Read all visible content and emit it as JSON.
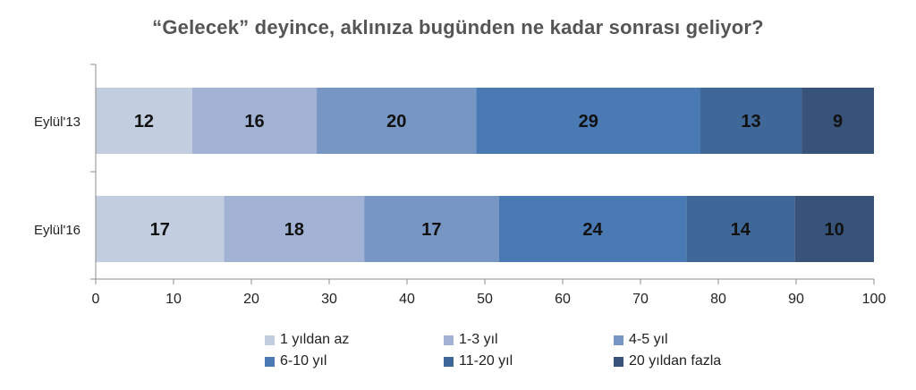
{
  "chart_data": {
    "type": "bar",
    "orientation": "horizontal",
    "stacked": true,
    "title": "“Gelecek” deyince, aklınıza bugünden ne kadar sonrası geliyor?",
    "categories": [
      "Eylül'13",
      "Eylül'16"
    ],
    "series": [
      {
        "name": "1 yıldan az",
        "values": [
          12,
          17
        ],
        "color": "#c3cde0"
      },
      {
        "name": "1-3 yıl",
        "values": [
          16,
          18
        ],
        "color": "#a1b2d4"
      },
      {
        "name": "4-5 yıl",
        "values": [
          20,
          17
        ],
        "color": "#7796c4"
      },
      {
        "name": "6-10 yıl",
        "values": [
          29,
          24
        ],
        "color": "#4a7ab3"
      },
      {
        "name": "11-20 yıl",
        "values": [
          13,
          14
        ],
        "color": "#3f6899"
      },
      {
        "name": "20 yıldan fazla",
        "values": [
          9,
          10
        ],
        "color": "#385379"
      }
    ],
    "cumulative_ends": [
      [
        12.4,
        28.4,
        48.9,
        77.7,
        90.7,
        100
      ],
      [
        16.5,
        34.5,
        51.8,
        75.9,
        89.8,
        100
      ]
    ],
    "xlim": [
      0,
      100
    ],
    "xticks": [
      0,
      10,
      20,
      30,
      40,
      50,
      60,
      70,
      80,
      90,
      100
    ],
    "grid": false,
    "legend_position": "bottom"
  }
}
